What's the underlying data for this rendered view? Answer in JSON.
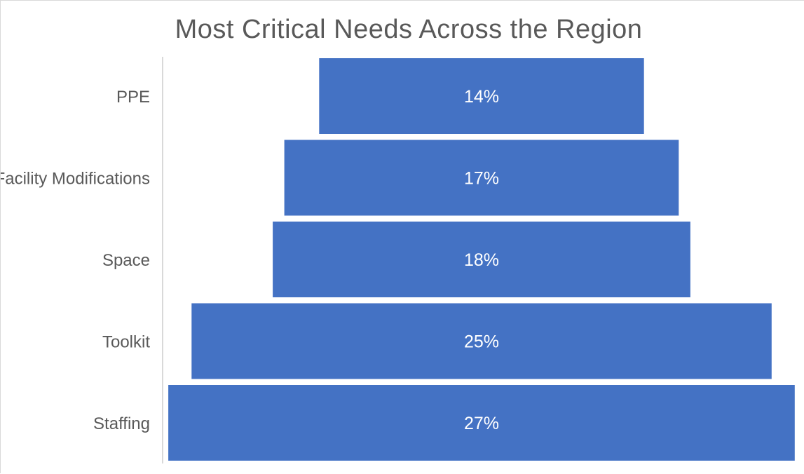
{
  "chart_data": {
    "type": "bar",
    "orientation": "horizontal",
    "style": "funnel",
    "title": "Most Critical Needs Across the Region",
    "categories": [
      "PPE",
      "Facility Modifications",
      "Space",
      "Toolkit",
      "Staffing"
    ],
    "values": [
      14,
      17,
      18,
      25,
      27
    ],
    "value_labels": [
      "14%",
      "17%",
      "18%",
      "25%",
      "27%"
    ],
    "unit": "%",
    "xlabel": "",
    "ylabel": "",
    "grid": false,
    "legend": "none",
    "bar_color": "#4472C4"
  }
}
